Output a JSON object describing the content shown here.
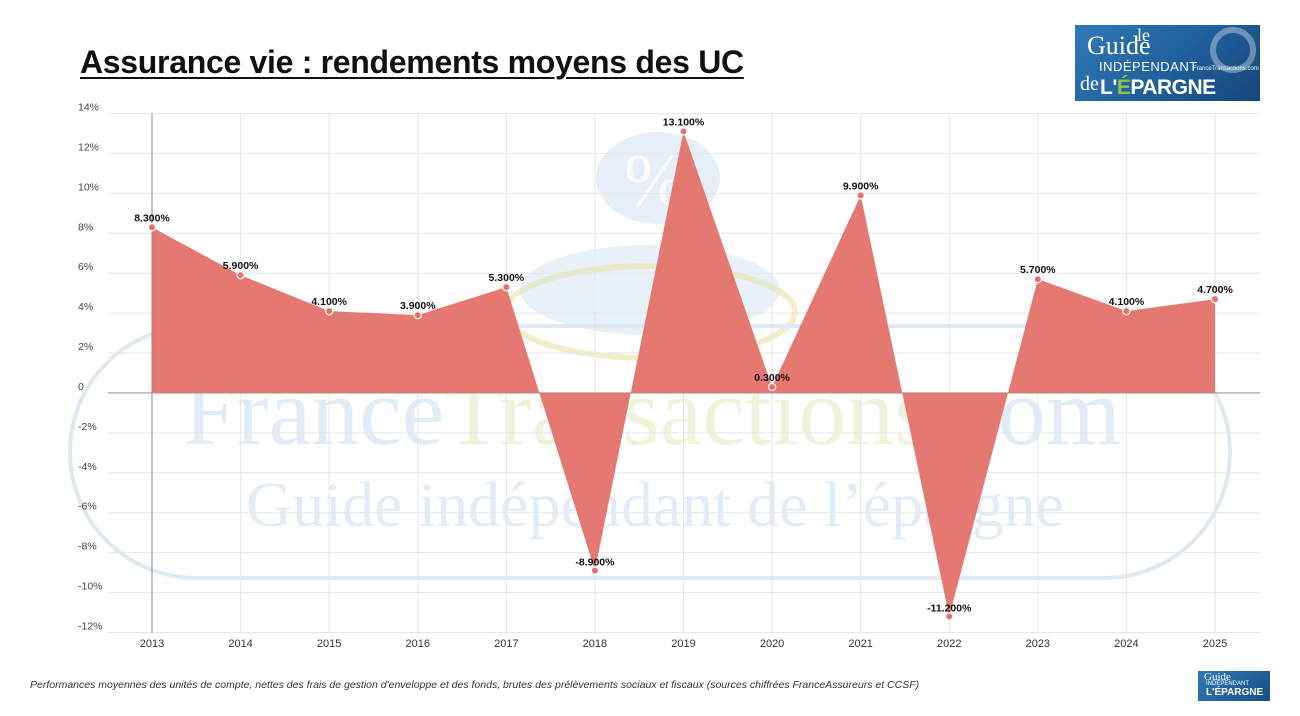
{
  "header": {
    "title": "Assurance vie : rendements moyens des UC"
  },
  "logo": {
    "le": "le",
    "guide": "Guide",
    "independant": "INDÉPENDANT",
    "site": "FranceTransactions.com",
    "de": "de",
    "epargne_prefix": "L'",
    "epargne_accent": "É",
    "epargne_rest": "PARGNE"
  },
  "logo_small": {
    "guide": "Guide",
    "independant": "INDÉPENDANT",
    "epargne": "L'ÉPARGNE"
  },
  "watermark": {
    "percent": "%",
    "line1_a": "France",
    "line1_b": "Transactions",
    "line1_c": ".com",
    "line2": "Guide indépendant de l’épargne"
  },
  "footnote": "Performances moyennes des unités de compte, nettes des frais de gestion d'enveloppe et des fonds, brutes des prélèvements sociaux et fiscaux (sources chiffrées FranceAssureurs et CCSF)",
  "colors": {
    "area": "#e4726a",
    "point": "#e4726a",
    "grid": "#e6e6e6",
    "zero_line": "#999999",
    "watermark_blue": "#9fc3e6",
    "watermark_green": "#c8dc8a"
  },
  "chart_data": {
    "type": "area",
    "title": "Assurance vie : rendements moyens des UC",
    "xlabel": "",
    "ylabel": "",
    "categories": [
      "2013",
      "2014",
      "2015",
      "2016",
      "2017",
      "2018",
      "2019",
      "2020",
      "2021",
      "2022",
      "2023",
      "2024",
      "2025"
    ],
    "values": [
      8.3,
      5.9,
      4.1,
      3.9,
      5.3,
      -8.9,
      13.1,
      0.3,
      9.9,
      -11.2,
      5.7,
      4.1,
      4.7
    ],
    "data_labels": [
      "8.300%",
      "5.900%",
      "4.100%",
      "3.900%",
      "5.300%",
      "-8.900%",
      "13.100%",
      "0.300%",
      "9.900%",
      "-11.200%",
      "5.700%",
      "4.100%",
      "4.700%"
    ],
    "ylim": [
      -12,
      14
    ],
    "y_ticks": [
      14,
      12,
      10,
      8,
      6,
      4,
      2,
      0,
      -2,
      -4,
      -6,
      -8,
      -10,
      -12
    ],
    "y_tick_labels": [
      "14%",
      "12%",
      "10%",
      "8%",
      "6%",
      "4%",
      "2%",
      "0",
      "-2%",
      "-4%",
      "-6%",
      "-8%",
      "-10%",
      "-12%"
    ],
    "grid": true,
    "legend": "none"
  }
}
